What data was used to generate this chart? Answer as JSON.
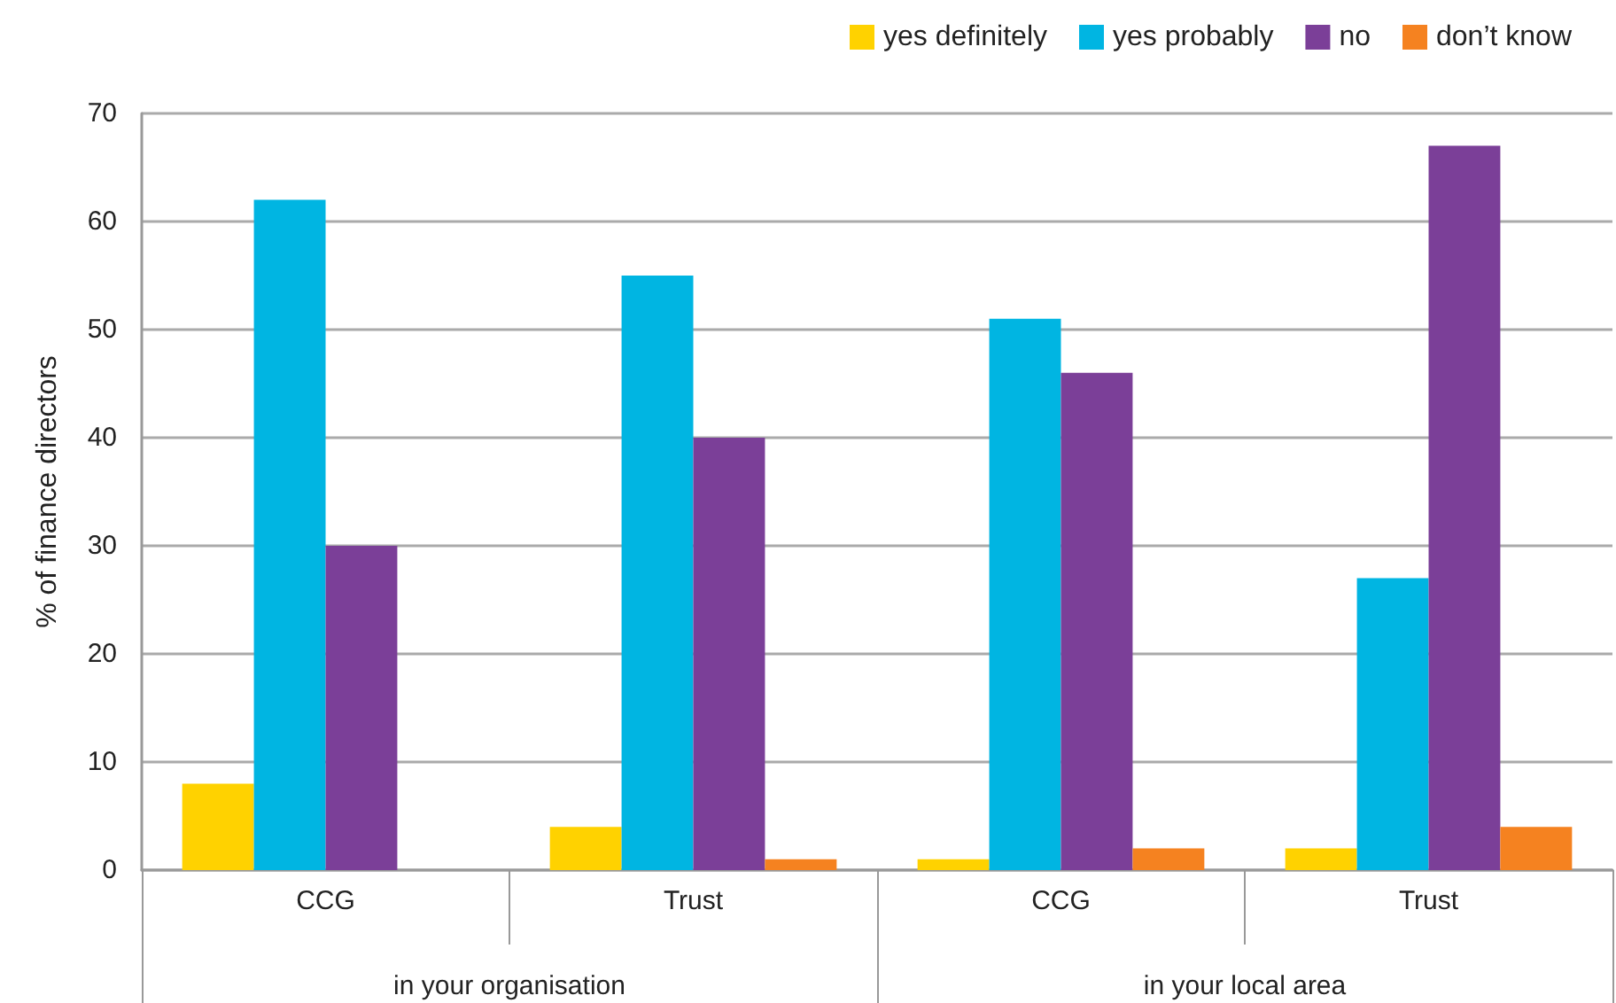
{
  "chart_data": {
    "type": "bar",
    "ylabel": "% of finance directors",
    "categories": [
      "CCG",
      "Trust",
      "CCG",
      "Trust"
    ],
    "annotations": [
      "in your organisation",
      "in your local area"
    ],
    "series": [
      {
        "name": "yes definitely",
        "color": "#ffd200",
        "values": [
          8,
          4,
          1,
          2
        ]
      },
      {
        "name": "yes probably",
        "color": "#00b5e2",
        "values": [
          62,
          55,
          51,
          27
        ]
      },
      {
        "name": "no",
        "color": "#7b3f98",
        "values": [
          30,
          40,
          46,
          67
        ]
      },
      {
        "name": "don’t know",
        "color": "#f58220",
        "values": [
          0,
          1,
          2,
          4
        ]
      }
    ],
    "ylim": [
      0,
      70
    ],
    "yticks": [
      0,
      10,
      20,
      30,
      40,
      50,
      60,
      70
    ],
    "grid": "y",
    "legend": "top right"
  }
}
